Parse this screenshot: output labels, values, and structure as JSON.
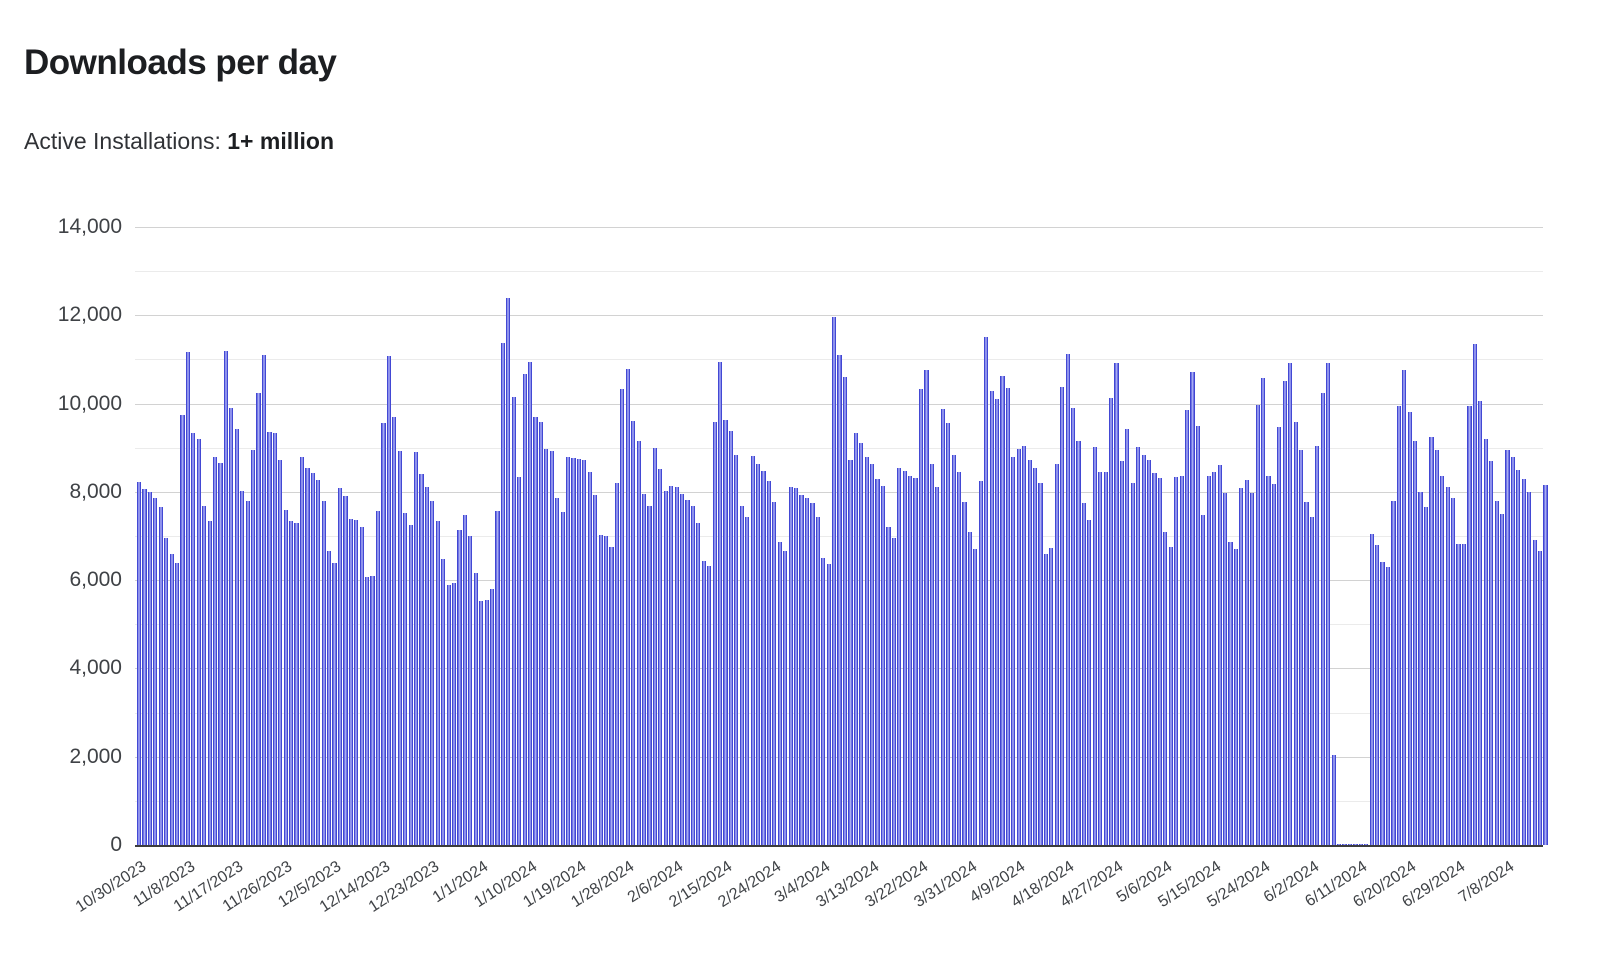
{
  "header": {
    "title": "Downloads per day",
    "subtitle_label": "Active Installations: ",
    "subtitle_value": "1+ million"
  },
  "chart_data": {
    "type": "bar",
    "title": "Downloads per day",
    "xlabel": "",
    "ylabel": "",
    "ylim": [
      0,
      14000
    ],
    "grid": "horizontal, every 1000 (major lines every 2000 labeled)",
    "legend": "none",
    "bar_color": "#5a61e0",
    "bar_stripe_colors": [
      "#4146d3",
      "#7b80e8",
      "#b9bdf5"
    ],
    "y_tick_labels": [
      "0",
      "2,000",
      "4,000",
      "6,000",
      "8,000",
      "10,000",
      "12,000",
      "14,000"
    ],
    "y_tick_values": [
      0,
      2000,
      4000,
      6000,
      8000,
      10000,
      12000,
      14000
    ],
    "start_date": "10/30/2023",
    "x_tick_interval_days": 9,
    "x_tick_labels": [
      "10/30/2023",
      "11/8/2023",
      "11/17/2023",
      "11/26/2023",
      "12/5/2023",
      "12/14/2023",
      "12/23/2023",
      "1/1/2024",
      "1/10/2024",
      "1/19/2024",
      "1/28/2024",
      "2/6/2024",
      "2/15/2024",
      "2/24/2024",
      "3/4/2024",
      "3/13/2024",
      "3/22/2024",
      "3/31/2024",
      "4/9/2024",
      "4/18/2024",
      "4/27/2024",
      "5/6/2024",
      "5/15/2024",
      "5/24/2024",
      "6/2/2024",
      "6/11/2024",
      "6/20/2024",
      "6/29/2024",
      "7/8/2024"
    ],
    "values": [
      8230,
      8060,
      8000,
      7860,
      7650,
      6950,
      6590,
      6380,
      9730,
      11170,
      9340,
      9200,
      7670,
      7350,
      8800,
      8650,
      11200,
      9900,
      9430,
      8030,
      7790,
      8950,
      10250,
      11100,
      9350,
      9330,
      8720,
      7600,
      7340,
      7290,
      8780,
      8540,
      8420,
      8270,
      7800,
      6660,
      6390,
      8090,
      7900,
      7380,
      7370,
      7200,
      6080,
      6090,
      7560,
      9570,
      11080,
      9700,
      8930,
      7520,
      7250,
      8900,
      8400,
      8100,
      7800,
      7330,
      6480,
      5880,
      5930,
      7130,
      7470,
      6990,
      6160,
      5530,
      5550,
      5810,
      7560,
      11370,
      12400,
      10150,
      8330,
      10660,
      10940,
      9700,
      9590,
      8970,
      8930,
      7850,
      7540,
      8790,
      8770,
      8750,
      8720,
      8440,
      7930,
      7030,
      6990,
      6740,
      8210,
      10340,
      10790,
      9610,
      9150,
      7960,
      7670,
      9000,
      8520,
      8030,
      8130,
      8100,
      7960,
      7810,
      7670,
      7300,
      6440,
      6320,
      9590,
      10940,
      9620,
      9380,
      8830,
      7670,
      7420,
      8810,
      8630,
      8480,
      8240,
      7760,
      6870,
      6650,
      8110,
      8080,
      7930,
      7870,
      7740,
      7440,
      6510,
      6370,
      11950,
      11100,
      10610,
      8720,
      9330,
      9100,
      8780,
      8630,
      8290,
      8130,
      7210,
      6960,
      8540,
      8470,
      8350,
      8310,
      10340,
      10760,
      8630,
      8110,
      9880,
      9560,
      8840,
      8460,
      7780,
      7100,
      6710,
      8250,
      11510,
      10290,
      10100,
      10620,
      10350,
      8780,
      8960,
      9050,
      8720,
      8540,
      8190,
      6590,
      6730,
      8630,
      10370,
      11120,
      9890,
      9150,
      7740,
      7360,
      9015,
      8440,
      8460,
      10130,
      10910,
      8690,
      9420,
      8195,
      9015,
      8840,
      8725,
      8420,
      8325,
      7100,
      6760,
      8330,
      8360,
      9850,
      10720,
      9485,
      7480,
      8370,
      8440,
      8610,
      7980,
      6860,
      6700,
      8080,
      8260,
      7985,
      9960,
      10580,
      8350,
      8180,
      9480,
      10510,
      10910,
      9580,
      8940,
      7760,
      7420,
      9050,
      10240,
      10925,
      2050,
      20,
      20,
      20,
      20,
      20,
      20,
      7050,
      6800,
      6400,
      6300,
      7800,
      9950,
      10750,
      9800,
      9150,
      8000,
      7650,
      9250,
      8950,
      8350,
      8100,
      7850,
      6820,
      6820,
      9950,
      11350,
      10050,
      9200,
      8700,
      7800,
      7500,
      8950,
      8800,
      8500,
      8300,
      8000,
      6900,
      6650,
      8150
    ]
  }
}
